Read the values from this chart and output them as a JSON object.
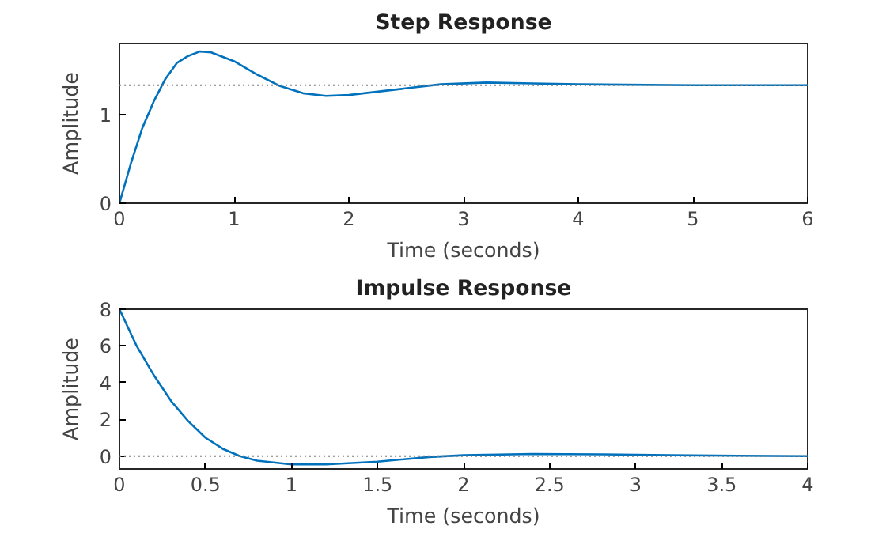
{
  "chart_data": [
    {
      "type": "line",
      "title": "Step Response",
      "xlabel": "Time (seconds)",
      "ylabel": "Amplitude",
      "xlim": [
        0,
        6
      ],
      "xticks": [
        0,
        1,
        2,
        3,
        4,
        5,
        6
      ],
      "ylim": [
        0,
        1.8
      ],
      "yticks": [
        0,
        1
      ],
      "grid": false,
      "x": [
        0,
        0.1,
        0.2,
        0.3,
        0.4,
        0.5,
        0.6,
        0.7,
        0.8,
        1.0,
        1.2,
        1.4,
        1.6,
        1.8,
        2.0,
        2.4,
        2.8,
        3.2,
        3.6,
        4.0,
        5.0,
        6.0
      ],
      "series": [
        {
          "color": "#0072bd",
          "values": [
            0,
            0.45,
            0.85,
            1.15,
            1.4,
            1.58,
            1.66,
            1.71,
            1.7,
            1.6,
            1.45,
            1.32,
            1.24,
            1.21,
            1.22,
            1.28,
            1.34,
            1.36,
            1.35,
            1.34,
            1.33,
            1.33
          ]
        }
      ],
      "ref_lines": [
        {
          "axis": "y",
          "value": 1.33,
          "color": "#808080",
          "line_style": "dotted"
        }
      ]
    },
    {
      "type": "line",
      "title": "Impulse Response",
      "xlabel": "Time (seconds)",
      "ylabel": "Amplitude",
      "xlim": [
        0,
        4
      ],
      "xticks": [
        0,
        0.5,
        1,
        1.5,
        2,
        2.5,
        3,
        3.5,
        4
      ],
      "ylim": [
        -0.7,
        8
      ],
      "yticks": [
        0,
        2,
        4,
        6,
        8
      ],
      "grid": false,
      "x": [
        0,
        0.1,
        0.2,
        0.3,
        0.4,
        0.5,
        0.6,
        0.7,
        0.8,
        1.0,
        1.2,
        1.5,
        1.8,
        2.0,
        2.4,
        2.8,
        3.2,
        3.6,
        4.0
      ],
      "series": [
        {
          "color": "#0072bd",
          "values": [
            8,
            6.0,
            4.4,
            3.0,
            1.9,
            1.0,
            0.4,
            0,
            -0.25,
            -0.45,
            -0.45,
            -0.3,
            -0.05,
            0.05,
            0.12,
            0.1,
            0.05,
            0.02,
            0
          ]
        }
      ],
      "ref_lines": [
        {
          "axis": "y",
          "value": 0,
          "color": "#808080",
          "line_style": "dotted"
        }
      ]
    }
  ]
}
